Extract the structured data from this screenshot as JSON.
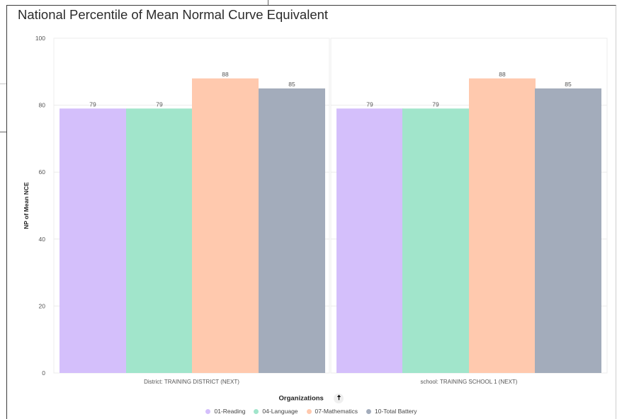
{
  "chart_data": {
    "type": "bar",
    "title": "National Percentile of Mean Normal Curve Equivalent",
    "ylabel": "NP of Mean NCE",
    "xlabel": "",
    "ylim": [
      0,
      100
    ],
    "yticks": [
      0,
      20,
      40,
      60,
      80,
      100
    ],
    "grid": true,
    "categories": [
      "District: TRAINING DISTRICT (NEXT)",
      "school: TRAINING SCHOOL 1 (NEXT)"
    ],
    "series": [
      {
        "name": "01-Reading",
        "color": "#d4bffb",
        "values": [
          79,
          79
        ]
      },
      {
        "name": "04-Language",
        "color": "#a1e5cb",
        "values": [
          79,
          79
        ]
      },
      {
        "name": "07-Mathematics",
        "color": "#ffc9ae",
        "values": [
          88,
          88
        ]
      },
      {
        "name": "10-Total Battery",
        "color": "#a3acbb",
        "values": [
          85,
          85
        ]
      }
    ],
    "legend": {
      "title": "Organizations",
      "placement": "bottom",
      "sort_icon": "arrow-up-icon"
    }
  }
}
